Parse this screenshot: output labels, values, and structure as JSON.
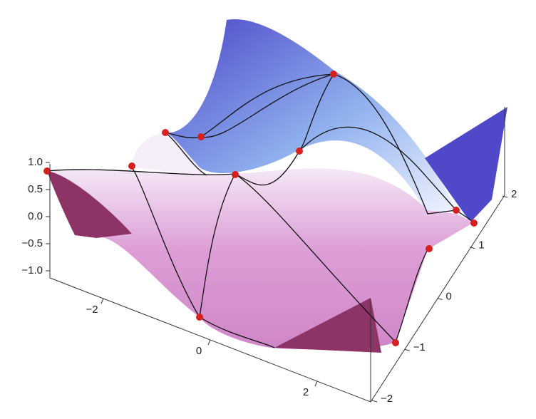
{
  "chart_data": {
    "type": "surface",
    "xlim": [
      -3,
      3
    ],
    "xticks": [
      {
        "value": -2,
        "label": "−2"
      },
      0,
      {
        "value": 2,
        "label": "2"
      }
    ],
    "ylim": [
      -2,
      2
    ],
    "yticks": [
      {
        "value": -2,
        "label": "−2"
      },
      {
        "value": -1,
        "label": "−1"
      },
      0,
      1,
      2
    ],
    "zlim": [
      -1,
      1
    ],
    "zticks": [
      {
        "value": 1,
        "label": "1.0"
      },
      {
        "value": 0.5,
        "label": "0.5"
      },
      {
        "value": 0,
        "label": "0.0"
      },
      {
        "value": -0.5,
        "label": "−0.5"
      },
      {
        "value": -1,
        "label": "−1.0"
      }
    ]
  }
}
